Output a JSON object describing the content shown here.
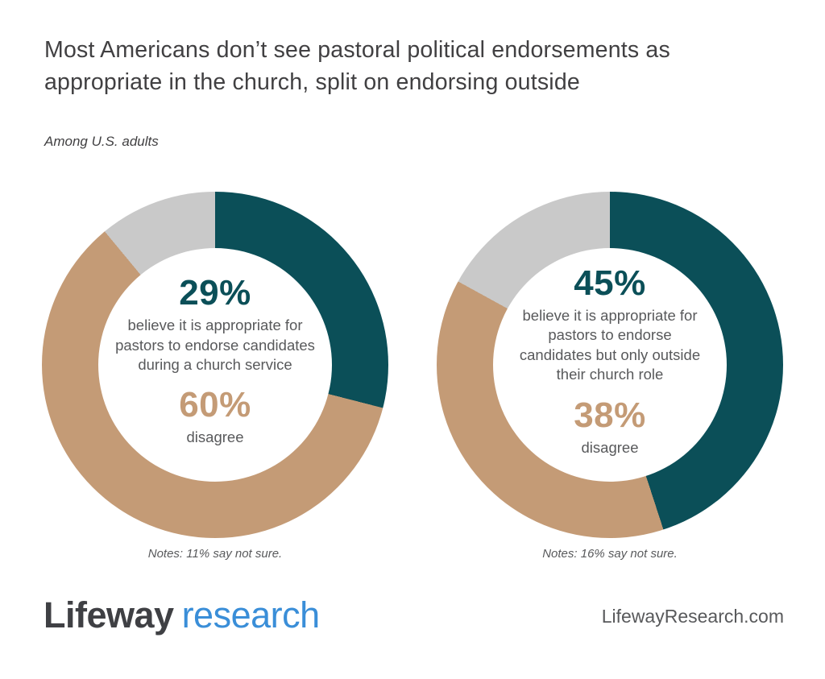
{
  "header": {
    "title": "Most Americans don’t see pastoral political endorsements as appropriate in the church, split on endorsing outside",
    "subtitle": "Among U.S. adults"
  },
  "chart_data": [
    {
      "type": "pie",
      "subtype": "donut",
      "start_angle_deg": 0,
      "direction": "clockwise",
      "hole_ratio": 0.67,
      "slices": [
        {
          "label": "believe it is appropriate for pastors to endorse candidates during a church service",
          "value": 29,
          "color": "#0b4f58"
        },
        {
          "label": "disagree",
          "value": 60,
          "color": "#c49b76"
        },
        {
          "label": "not sure",
          "value": 11,
          "color": "#c9c9c9"
        }
      ],
      "center": {
        "agree_pct": "29%",
        "agree_label": "believe it is appropriate for pastors to endorse candidates during a church service",
        "disagree_pct": "60%",
        "disagree_label": "disagree"
      },
      "note": "Notes: 11% say not sure."
    },
    {
      "type": "pie",
      "subtype": "donut",
      "start_angle_deg": 0,
      "direction": "clockwise",
      "hole_ratio": 0.67,
      "slices": [
        {
          "label": "believe it is appropriate for pastors to endorse candidates but only outside their church role",
          "value": 45,
          "color": "#0b4f58"
        },
        {
          "label": "disagree",
          "value": 38,
          "color": "#c49b76"
        },
        {
          "label": "not sure",
          "value": 16,
          "color": "#c9c9c9"
        }
      ],
      "center": {
        "agree_pct": "45%",
        "agree_label": "believe it is appropriate for pastors to endorse candidates but only outside their church role",
        "disagree_pct": "38%",
        "disagree_label": "disagree"
      },
      "note": "Notes: 16% say not sure."
    }
  ],
  "footer": {
    "logo_primary": "Lifeway",
    "logo_secondary": "research",
    "website": "LifewayResearch.com"
  },
  "colors": {
    "agree": "#0b4f58",
    "disagree": "#c49b76",
    "not_sure": "#c9c9c9",
    "title_text": "#414042",
    "body_text": "#58595b",
    "logo_dark": "#3f4044",
    "logo_blue": "#3a8ed8",
    "background": "#ffffff"
  }
}
